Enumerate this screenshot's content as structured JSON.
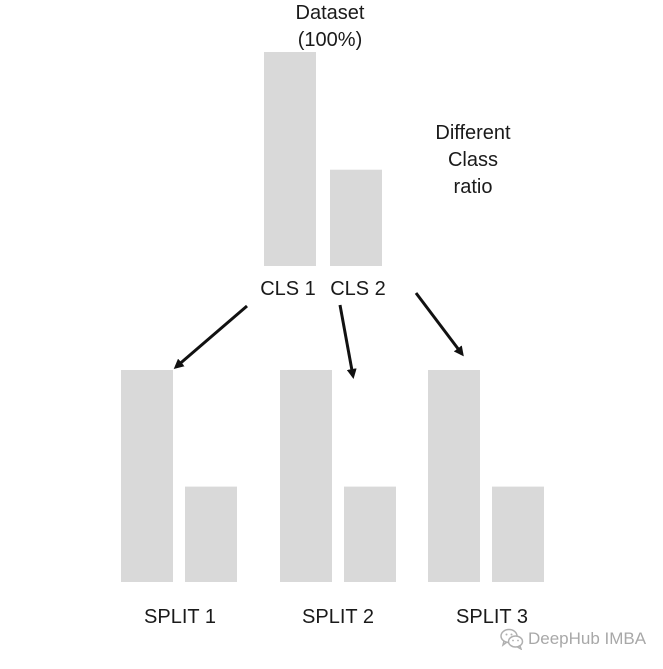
{
  "title_line1": "Dataset",
  "title_line2": "(100%)",
  "note_line1": "Different",
  "note_line2": "Class",
  "note_line3": "ratio",
  "class_labels": [
    "CLS 1",
    "CLS 2"
  ],
  "split_labels": [
    "SPLIT 1",
    "SPLIT 2",
    "SPLIT 3"
  ],
  "watermark": "DeepHub IMBA",
  "watermark_icon": "wechat-icon",
  "colors": {
    "bar": "#d9d9d9",
    "arrow": "#111111",
    "text": "#1a1a1a",
    "watermark": "#a8a8a8"
  },
  "chart_data": {
    "type": "bar",
    "groups": [
      {
        "name": "Dataset",
        "values": [
          100,
          45
        ]
      },
      {
        "name": "SPLIT 1",
        "values": [
          100,
          45
        ]
      },
      {
        "name": "SPLIT 2",
        "values": [
          100,
          45
        ]
      },
      {
        "name": "SPLIT 3",
        "values": [
          100,
          45
        ]
      }
    ],
    "categories": [
      "CLS 1",
      "CLS 2"
    ]
  }
}
